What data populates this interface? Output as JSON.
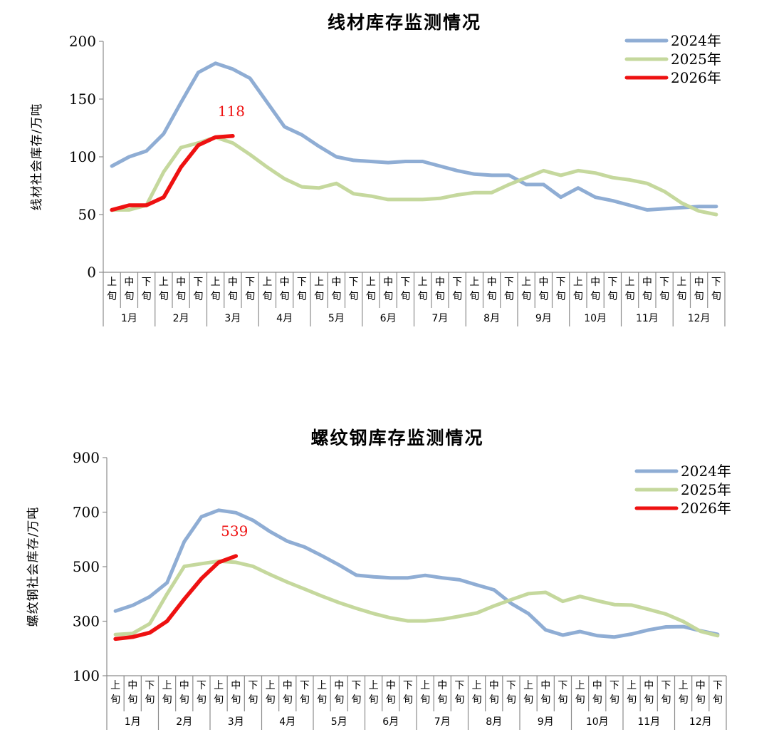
{
  "chart_data": [
    {
      "type": "line",
      "title": "线材库存监测情况",
      "ylabel": "线材社会库存/万吨",
      "ylim": [
        0,
        200
      ],
      "yticks": [
        0,
        50,
        100,
        150,
        200
      ],
      "x_sub_labels": [
        [
          "上",
          "旬"
        ],
        [
          "中",
          "旬"
        ],
        [
          "下",
          "旬"
        ]
      ],
      "months": [
        "1月",
        "2月",
        "3月",
        "4月",
        "5月",
        "6月",
        "7月",
        "8月",
        "9月",
        "10月",
        "11月",
        "12月"
      ],
      "legend_position": "top-right",
      "series": [
        {
          "name": "2024年",
          "color": "#8fadd4",
          "values": [
            92,
            100,
            105,
            120,
            147,
            173,
            181,
            176,
            168,
            147,
            126,
            119,
            109,
            100,
            97,
            96,
            95,
            96,
            96,
            92,
            88,
            85,
            84,
            84,
            76,
            76,
            65,
            73,
            65,
            62,
            58,
            54,
            55,
            56,
            57,
            57
          ]
        },
        {
          "name": "2025年",
          "color": "#c5d89d",
          "values": [
            54,
            54,
            58,
            87,
            108,
            112,
            117,
            112,
            102,
            91,
            81,
            74,
            73,
            77,
            68,
            66,
            63,
            63,
            63,
            64,
            67,
            69,
            69,
            76,
            82,
            88,
            84,
            88,
            86,
            82,
            80,
            77,
            70,
            60,
            53,
            50
          ]
        },
        {
          "name": "2026年",
          "color": "#ee1111",
          "values": [
            54,
            58,
            58,
            65,
            91,
            110,
            117,
            118
          ]
        }
      ],
      "annotation": {
        "text": "118",
        "index": 7,
        "color": "#ee1111"
      }
    },
    {
      "type": "line",
      "title": "螺纹钢库存监测情况",
      "ylabel": "螺纹钢社会库存/万吨",
      "ylim": [
        100,
        900
      ],
      "yticks": [
        100,
        300,
        500,
        700,
        900
      ],
      "x_sub_labels": [
        [
          "上",
          "旬"
        ],
        [
          "中",
          "旬"
        ],
        [
          "下",
          "旬"
        ]
      ],
      "months": [
        "1月",
        "2月",
        "3月",
        "4月",
        "5月",
        "6月",
        "7月",
        "8月",
        "9月",
        "10月",
        "11月",
        "12月"
      ],
      "legend_position": "top-right",
      "series": [
        {
          "name": "2024年",
          "color": "#8fadd4",
          "values": [
            337,
            358,
            390,
            441,
            592,
            683,
            707,
            698,
            670,
            628,
            593,
            572,
            540,
            506,
            469,
            463,
            459,
            459,
            468,
            459,
            452,
            433,
            415,
            365,
            328,
            268,
            249,
            262,
            247,
            242,
            253,
            268,
            279,
            280,
            265,
            252
          ]
        },
        {
          "name": "2025年",
          "color": "#c5d89d",
          "values": [
            251,
            255,
            291,
            400,
            501,
            511,
            520,
            516,
            501,
            471,
            443,
            418,
            392,
            368,
            347,
            328,
            312,
            301,
            301,
            307,
            318,
            330,
            356,
            379,
            401,
            406,
            373,
            391,
            375,
            361,
            359,
            343,
            326,
            299,
            263,
            247
          ]
        },
        {
          "name": "2026年",
          "color": "#ee1111",
          "values": [
            235,
            242,
            258,
            300,
            381,
            456,
            516,
            539
          ]
        }
      ],
      "annotation": {
        "text": "539",
        "index": 7,
        "color": "#ee1111"
      }
    }
  ]
}
